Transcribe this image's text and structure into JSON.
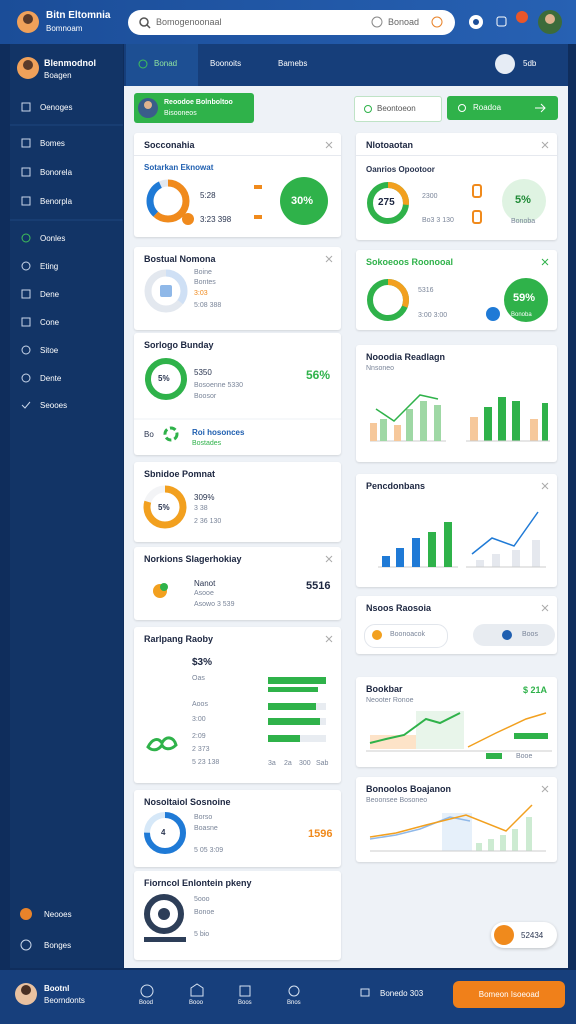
{
  "top_bar": {
    "title": "Bitn Eltomnia",
    "subtitle": "Bomnoam",
    "search_placeholder": "Bomogenoonaal",
    "search_button": "Bonoad"
  },
  "sidebar": {
    "profile_name": "Blenmodnol",
    "profile_role": "Boagen",
    "menu": [
      "Oenoges",
      "Bomes",
      "Bonorela",
      "Benorpla",
      "Oonles",
      "Eting",
      "Dene",
      "Cone",
      "Sitoe",
      "Dente",
      "Seooes"
    ],
    "footer": [
      "Neooes",
      "Bonges"
    ]
  },
  "header": {
    "tabs": [
      "Bonad",
      "Boonoits",
      "Bamebs"
    ],
    "user": "5db"
  },
  "toolbar": {
    "profile_title": "Reoodoe Bolnboltoo",
    "profile_sub": "Bisooneos",
    "filter": "Beontoeon",
    "action": "Roadoa"
  },
  "left_cards": [
    {
      "title": "Socconahia",
      "sub": "Sotarkan Eknowat",
      "a": "5:28",
      "b": "3:23 398",
      "pct": "30%"
    },
    {
      "title": "Bostual Nomona",
      "lines": [
        "Boine",
        "Bontes",
        "3:03",
        "5:08 388"
      ]
    },
    {
      "title": "Sorlogo Bunday",
      "ring": "5%",
      "a": "5350",
      "b": "Bosoenne 5330",
      "c": "Boosor",
      "big": "56%",
      "row_label": "Bo",
      "row_title": "Roi hosonces",
      "row_sub": "Bostades"
    },
    {
      "title": "Sbnidoe Pomnat",
      "ring": "5%",
      "a": "309%",
      "b": "3 38",
      "c": "2 36 130"
    },
    {
      "title": "Norkions Slagerhokiay",
      "big": "5516",
      "a": "Nanot",
      "b": "Asooe",
      "c": "Asowo 3 539"
    },
    {
      "title": "Rarlpang Raoby",
      "big": "$3%",
      "rows": [
        "Oas",
        "Aoos",
        "3:00",
        "2:09",
        "2 373",
        "5 23 138"
      ],
      "axis": [
        "3a",
        "2a",
        "300",
        "Sab"
      ]
    },
    {
      "title": "Nosoltaiol Sosnoine",
      "ring": "4",
      "big": "1596",
      "lines": [
        "Borso",
        "Boasne",
        "5 05 3:09"
      ]
    },
    {
      "title": "Fiorncol Enlontein pkeny",
      "lines": [
        "5ooo",
        "Bonoe",
        "5 bio"
      ]
    }
  ],
  "right_cards": [
    {
      "title": "Nlotoaotan",
      "sub": "Oanrios Opootoor",
      "ring": "275",
      "a": "2300",
      "b": "Bo3 3 130",
      "pct": "5%",
      "pct_label": "Bonoba"
    },
    {
      "title": "Sokoeoos Roonooal",
      "a": "5316",
      "b": "3:00 3:00",
      "pct": "59%",
      "pct_label": "Bonoba"
    },
    {
      "title": "Nooodia Readlagn",
      "sub": "Nnsoneo"
    },
    {
      "title": "Pencdonbans"
    },
    {
      "title": "Nsoos Raosoia",
      "a": "Boonoacok",
      "b": "Boos"
    },
    {
      "title": "Bookbar",
      "value": "$ 21A",
      "sub": "Neooter Ronoe",
      "legend": "Booe"
    },
    {
      "title": "Bonoolos Boajanon",
      "sub": "Beoonsee Bosoneo"
    }
  ],
  "floating": {
    "label": "52434"
  },
  "bottom_bar": {
    "name": "Bootnl",
    "role": "Beorndonts",
    "nav": [
      "Bood",
      "Booo",
      "Boos",
      "Bnos"
    ],
    "status": "Bonedo 303",
    "button": "Bomeon Isoeoad"
  }
}
